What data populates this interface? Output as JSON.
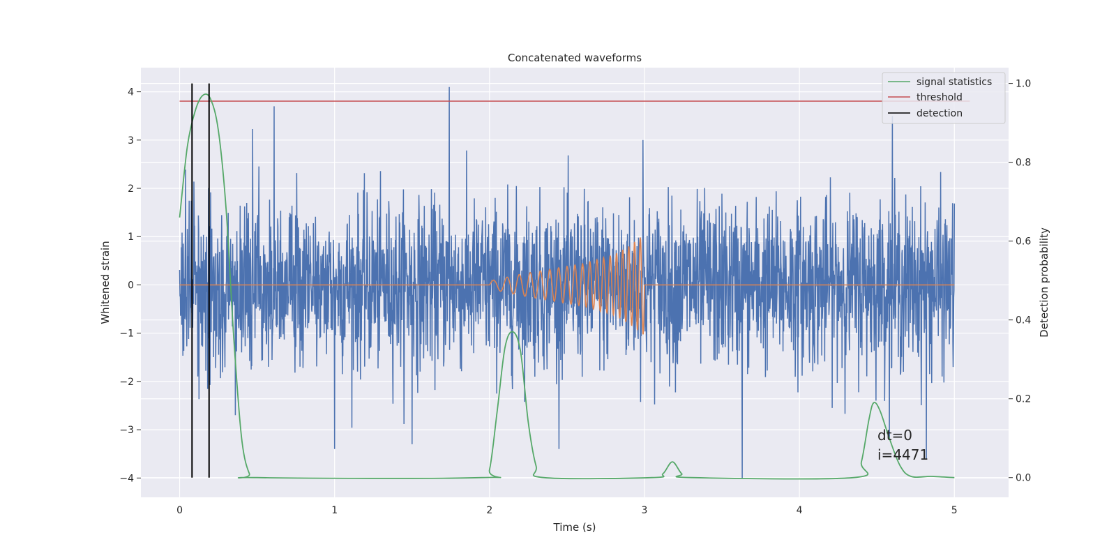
{
  "chart_data": {
    "type": "line",
    "title": "Concatenated waveforms",
    "xlabel": "Time (s)",
    "ylabel": "Whitened strain",
    "y2label": "Detection probability",
    "xlim": [
      -0.25,
      5.35
    ],
    "ylim": [
      -4.4,
      4.5
    ],
    "y2lim": [
      -0.05,
      1.04
    ],
    "xticks": [
      0,
      1,
      2,
      3,
      4,
      5
    ],
    "yticks": [
      -4,
      -3,
      -2,
      -1,
      0,
      1,
      2,
      3,
      4
    ],
    "y2ticks": [
      0.0,
      0.2,
      0.4,
      0.6,
      0.8,
      1.0
    ],
    "grid": true,
    "legend_position": "top-right",
    "annotation": [
      "dt=0",
      "i=4471"
    ],
    "colors": {
      "strain": "#4c72b0",
      "waveform": "#dd8452",
      "signal": "#55a868",
      "threshold": "#c44e52",
      "detection": "#000000",
      "background": "#eaeaf2"
    },
    "series": [
      {
        "name": "",
        "role": "strain",
        "axis": "left",
        "x_range": [
          0,
          5
        ],
        "noise_std": 0.85,
        "peak_points": [
          [
            0.61,
            3.7
          ],
          [
            1.74,
            4.1
          ],
          [
            2.99,
            3.0
          ],
          [
            4.6,
            3.5
          ],
          [
            3.63,
            -4.0
          ],
          [
            0.36,
            -2.7
          ],
          [
            1.0,
            -3.4
          ],
          [
            1.5,
            -3.3
          ],
          [
            4.82,
            -3.6
          ]
        ]
      },
      {
        "name": "",
        "role": "waveform",
        "axis": "left",
        "x": [
          0,
          2.0,
          2.2,
          2.4,
          2.6,
          2.8,
          2.9,
          3.0,
          3.001,
          5.0
        ],
        "amplitude": [
          0,
          0.08,
          0.22,
          0.33,
          0.44,
          0.62,
          0.8,
          1.05,
          0,
          0
        ],
        "chirp_start_s": 2.0,
        "chirp_end_s": 3.0
      },
      {
        "name": "signal statistics",
        "role": "signal",
        "axis": "right",
        "x": [
          0.0,
          0.05,
          0.1,
          0.15,
          0.2,
          0.25,
          0.3,
          0.35,
          0.4,
          0.45,
          0.5,
          1.95,
          2.0,
          2.05,
          2.1,
          2.15,
          2.2,
          2.25,
          2.3,
          2.35,
          3.05,
          3.12,
          3.18,
          3.24,
          3.3,
          4.35,
          4.4,
          4.45,
          4.48,
          4.52,
          4.58,
          4.65,
          4.72,
          4.85,
          5.0
        ],
        "y": [
          0.66,
          0.84,
          0.93,
          0.97,
          0.96,
          0.88,
          0.68,
          0.35,
          0.1,
          0.01,
          0.0,
          0.0,
          0.02,
          0.17,
          0.33,
          0.37,
          0.32,
          0.14,
          0.03,
          0.0,
          0.0,
          0.01,
          0.04,
          0.01,
          0.0,
          0.0,
          0.04,
          0.15,
          0.19,
          0.17,
          0.1,
          0.03,
          0.003,
          0.003,
          0.0
        ]
      },
      {
        "name": "threshold",
        "role": "threshold",
        "axis": "right",
        "x": [
          0,
          5.1
        ],
        "y": [
          0.955,
          0.955
        ]
      },
      {
        "name": "detection",
        "role": "detection",
        "axis": "right",
        "x": [
          0.08,
          0.19
        ],
        "y_range": [
          0.0,
          1.0
        ]
      }
    ]
  }
}
